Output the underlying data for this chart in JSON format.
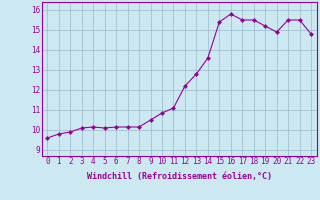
{
  "x": [
    0,
    1,
    2,
    3,
    4,
    5,
    6,
    7,
    8,
    9,
    10,
    11,
    12,
    13,
    14,
    15,
    16,
    17,
    18,
    19,
    20,
    21,
    22,
    23
  ],
  "y": [
    9.6,
    9.8,
    9.9,
    10.1,
    10.15,
    10.1,
    10.15,
    10.15,
    10.15,
    10.5,
    10.85,
    11.1,
    12.2,
    12.8,
    13.6,
    15.4,
    15.8,
    15.5,
    15.5,
    15.2,
    14.9,
    15.5,
    15.5,
    14.8
  ],
  "line_color": "#990099",
  "marker": "D",
  "marker_size": 2,
  "bg_color": "#cce8f0",
  "grid_color": "#99bbcc",
  "xlabel": "Windchill (Refroidissement éolien,°C)",
  "ylabel_ticks": [
    9,
    10,
    11,
    12,
    13,
    14,
    15,
    16
  ],
  "xticks": [
    0,
    1,
    2,
    3,
    4,
    5,
    6,
    7,
    8,
    9,
    10,
    11,
    12,
    13,
    14,
    15,
    16,
    17,
    18,
    19,
    20,
    21,
    22,
    23
  ],
  "ylim": [
    8.7,
    16.4
  ],
  "xlim": [
    -0.5,
    23.5
  ],
  "tick_fontsize": 5.5,
  "xlabel_fontsize": 6.0
}
